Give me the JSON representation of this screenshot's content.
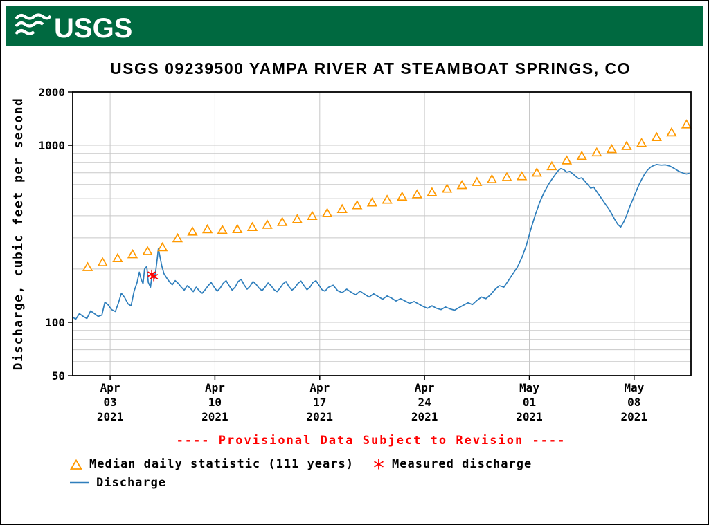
{
  "header": {
    "logo_text": "USGS",
    "background": "#006940"
  },
  "chart": {
    "title": "USGS 09239500 YAMPA RIVER AT STEAMBOAT SPRINGS, CO",
    "y_axis_label": "Discharge, cubic feet per second",
    "provisional_note": "---- Provisional Data Subject to Revision ----",
    "legend": [
      {
        "symbol": "triangle",
        "label": "Median daily statistic (111 years)"
      },
      {
        "symbol": "asterisk",
        "label": "Measured discharge"
      },
      {
        "symbol": "line",
        "label": "Discharge"
      }
    ],
    "colors": {
      "discharge": "#2e7ebc",
      "median": "#ff9900",
      "measured": "#ff0000",
      "provisional": "#ff0000",
      "grid": "#c8c8c8",
      "axis": "#000000",
      "header_green": "#006940"
    }
  },
  "chart_data": {
    "type": "line",
    "title": "USGS 09239500 YAMPA RIVER AT STEAMBOAT SPRINGS, CO",
    "ylabel": "Discharge, cubic feet per second",
    "y_scale": "log",
    "y_range": [
      50,
      2000
    ],
    "y_tick_labels": [
      {
        "value": 2000,
        "label": "2000"
      },
      {
        "value": 1000,
        "label": "1000"
      },
      {
        "value": 100,
        "label": "100"
      },
      {
        "value": 50,
        "label": "50"
      }
    ],
    "y_gridlines": [
      60,
      70,
      80,
      90,
      100,
      200,
      300,
      400,
      500,
      600,
      700,
      800,
      900,
      1000,
      2000
    ],
    "x_unit": "days since 2021-03-31 12:00",
    "x_range": [
      0,
      41.3
    ],
    "x_ticks": [
      {
        "t": 2.5,
        "lines": [
          "Apr",
          "03",
          "2021"
        ]
      },
      {
        "t": 9.5,
        "lines": [
          "Apr",
          "10",
          "2021"
        ]
      },
      {
        "t": 16.5,
        "lines": [
          "Apr",
          "17",
          "2021"
        ]
      },
      {
        "t": 23.5,
        "lines": [
          "Apr",
          "24",
          "2021"
        ]
      },
      {
        "t": 30.5,
        "lines": [
          "May",
          "01",
          "2021"
        ]
      },
      {
        "t": 37.5,
        "lines": [
          "May",
          "08",
          "2021"
        ]
      }
    ],
    "grid": true,
    "legend_position": "bottom",
    "series": [
      {
        "name": "Median daily statistic (111 years)",
        "type": "points",
        "marker": "triangle",
        "color": "#ff9900",
        "points": [
          [
            1,
            205
          ],
          [
            2,
            218
          ],
          [
            3,
            230
          ],
          [
            4,
            242
          ],
          [
            5,
            252
          ],
          [
            6,
            265
          ],
          [
            7,
            298
          ],
          [
            8,
            325
          ],
          [
            9,
            335
          ],
          [
            10,
            332
          ],
          [
            11,
            336
          ],
          [
            12,
            345
          ],
          [
            13,
            355
          ],
          [
            14,
            368
          ],
          [
            15,
            382
          ],
          [
            16,
            398
          ],
          [
            17,
            414
          ],
          [
            18,
            436
          ],
          [
            19,
            458
          ],
          [
            20,
            475
          ],
          [
            21,
            492
          ],
          [
            22,
            512
          ],
          [
            23,
            528
          ],
          [
            24,
            542
          ],
          [
            25,
            568
          ],
          [
            26,
            595
          ],
          [
            27,
            620
          ],
          [
            28,
            642
          ],
          [
            29,
            660
          ],
          [
            30,
            668
          ],
          [
            31,
            700
          ],
          [
            32,
            760
          ],
          [
            33,
            820
          ],
          [
            34,
            870
          ],
          [
            35,
            910
          ],
          [
            36,
            950
          ],
          [
            37,
            990
          ],
          [
            38,
            1030
          ],
          [
            39,
            1110
          ],
          [
            40,
            1180
          ],
          [
            41,
            1310
          ]
        ]
      },
      {
        "name": "Measured discharge",
        "type": "points",
        "marker": "asterisk",
        "color": "#ff0000",
        "points": [
          [
            5.28,
            187
          ],
          [
            5.42,
            181
          ]
        ]
      },
      {
        "name": "Discharge",
        "type": "line",
        "color": "#2e7ebc",
        "points": [
          [
            0,
            107
          ],
          [
            0.2,
            104
          ],
          [
            0.45,
            112
          ],
          [
            0.7,
            108
          ],
          [
            0.95,
            105
          ],
          [
            1.2,
            116
          ],
          [
            1.45,
            112
          ],
          [
            1.7,
            108
          ],
          [
            1.95,
            110
          ],
          [
            2.15,
            130
          ],
          [
            2.35,
            126
          ],
          [
            2.6,
            118
          ],
          [
            2.85,
            115
          ],
          [
            3.05,
            128
          ],
          [
            3.25,
            146
          ],
          [
            3.45,
            139
          ],
          [
            3.7,
            127
          ],
          [
            3.9,
            124
          ],
          [
            4.1,
            150
          ],
          [
            4.3,
            168
          ],
          [
            4.45,
            192
          ],
          [
            4.55,
            178
          ],
          [
            4.7,
            165
          ],
          [
            4.8,
            200
          ],
          [
            4.95,
            207
          ],
          [
            5.05,
            168
          ],
          [
            5.2,
            158
          ],
          [
            5.3,
            186
          ],
          [
            5.45,
            176
          ],
          [
            5.55,
            196
          ],
          [
            5.65,
            230
          ],
          [
            5.72,
            260
          ],
          [
            5.8,
            242
          ],
          [
            5.95,
            208
          ],
          [
            6.1,
            188
          ],
          [
            6.3,
            177
          ],
          [
            6.5,
            168
          ],
          [
            6.65,
            163
          ],
          [
            6.85,
            172
          ],
          [
            7.05,
            166
          ],
          [
            7.25,
            158
          ],
          [
            7.45,
            152
          ],
          [
            7.65,
            161
          ],
          [
            7.85,
            156
          ],
          [
            8.05,
            149
          ],
          [
            8.25,
            158
          ],
          [
            8.45,
            151
          ],
          [
            8.65,
            146
          ],
          [
            8.85,
            153
          ],
          [
            9.05,
            161
          ],
          [
            9.25,
            168
          ],
          [
            9.45,
            158
          ],
          [
            9.65,
            150
          ],
          [
            9.85,
            156
          ],
          [
            10.05,
            166
          ],
          [
            10.25,
            172
          ],
          [
            10.45,
            161
          ],
          [
            10.65,
            152
          ],
          [
            10.85,
            158
          ],
          [
            11.05,
            170
          ],
          [
            11.25,
            175
          ],
          [
            11.45,
            163
          ],
          [
            11.65,
            154
          ],
          [
            11.85,
            160
          ],
          [
            12.05,
            170
          ],
          [
            12.25,
            164
          ],
          [
            12.45,
            156
          ],
          [
            12.65,
            151
          ],
          [
            12.85,
            158
          ],
          [
            13.05,
            167
          ],
          [
            13.25,
            161
          ],
          [
            13.45,
            153
          ],
          [
            13.65,
            149
          ],
          [
            13.85,
            156
          ],
          [
            14.05,
            165
          ],
          [
            14.25,
            170
          ],
          [
            14.45,
            159
          ],
          [
            14.65,
            152
          ],
          [
            14.85,
            157
          ],
          [
            15.05,
            166
          ],
          [
            15.25,
            171
          ],
          [
            15.45,
            161
          ],
          [
            15.65,
            153
          ],
          [
            15.85,
            158
          ],
          [
            16.05,
            168
          ],
          [
            16.25,
            172
          ],
          [
            16.45,
            162
          ],
          [
            16.65,
            153
          ],
          [
            16.85,
            150
          ],
          [
            17.1,
            158
          ],
          [
            17.4,
            162
          ],
          [
            17.7,
            151
          ],
          [
            18,
            147
          ],
          [
            18.3,
            154
          ],
          [
            18.6,
            148
          ],
          [
            18.9,
            143
          ],
          [
            19.2,
            150
          ],
          [
            19.5,
            144
          ],
          [
            19.8,
            139
          ],
          [
            20.1,
            145
          ],
          [
            20.4,
            140
          ],
          [
            20.7,
            135
          ],
          [
            21,
            141
          ],
          [
            21.3,
            137
          ],
          [
            21.6,
            132
          ],
          [
            21.9,
            136
          ],
          [
            22.2,
            132
          ],
          [
            22.5,
            128
          ],
          [
            22.8,
            131
          ],
          [
            23.1,
            127
          ],
          [
            23.4,
            123
          ],
          [
            23.7,
            120
          ],
          [
            24,
            124
          ],
          [
            24.3,
            120
          ],
          [
            24.6,
            118
          ],
          [
            24.9,
            122
          ],
          [
            25.2,
            119
          ],
          [
            25.5,
            117
          ],
          [
            25.8,
            121
          ],
          [
            26.1,
            125
          ],
          [
            26.4,
            129
          ],
          [
            26.7,
            126
          ],
          [
            27,
            133
          ],
          [
            27.3,
            139
          ],
          [
            27.6,
            136
          ],
          [
            27.9,
            143
          ],
          [
            28.2,
            153
          ],
          [
            28.5,
            161
          ],
          [
            28.8,
            158
          ],
          [
            29.1,
            172
          ],
          [
            29.4,
            188
          ],
          [
            29.7,
            205
          ],
          [
            30,
            232
          ],
          [
            30.3,
            272
          ],
          [
            30.6,
            335
          ],
          [
            30.9,
            405
          ],
          [
            31.2,
            478
          ],
          [
            31.5,
            545
          ],
          [
            31.8,
            605
          ],
          [
            32.1,
            660
          ],
          [
            32.4,
            715
          ],
          [
            32.6,
            738
          ],
          [
            32.8,
            728
          ],
          [
            33,
            705
          ],
          [
            33.2,
            712
          ],
          [
            33.4,
            690
          ],
          [
            33.6,
            668
          ],
          [
            33.8,
            648
          ],
          [
            34,
            655
          ],
          [
            34.2,
            628
          ],
          [
            34.4,
            600
          ],
          [
            34.6,
            572
          ],
          [
            34.8,
            580
          ],
          [
            35,
            548
          ],
          [
            35.2,
            518
          ],
          [
            35.4,
            490
          ],
          [
            35.6,
            462
          ],
          [
            35.8,
            438
          ],
          [
            36,
            410
          ],
          [
            36.2,
            382
          ],
          [
            36.4,
            358
          ],
          [
            36.6,
            345
          ],
          [
            36.8,
            368
          ],
          [
            37,
            402
          ],
          [
            37.2,
            448
          ],
          [
            37.4,
            492
          ],
          [
            37.6,
            540
          ],
          [
            37.8,
            592
          ],
          [
            38,
            640
          ],
          [
            38.2,
            688
          ],
          [
            38.4,
            725
          ],
          [
            38.6,
            752
          ],
          [
            38.8,
            768
          ],
          [
            39,
            778
          ],
          [
            39.3,
            772
          ],
          [
            39.6,
            775
          ],
          [
            39.9,
            762
          ],
          [
            40.2,
            738
          ],
          [
            40.5,
            712
          ],
          [
            40.8,
            695
          ],
          [
            41,
            688
          ],
          [
            41.2,
            695
          ]
        ]
      }
    ]
  }
}
